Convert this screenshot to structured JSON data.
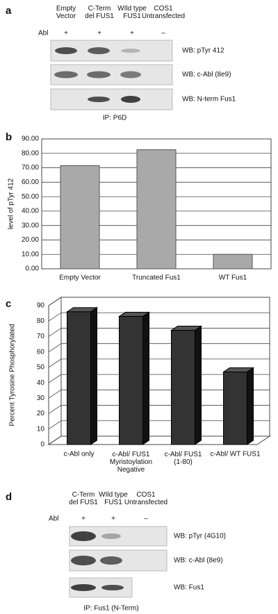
{
  "panel_a": {
    "label": "a",
    "columns": [
      "Empty\nVector",
      "C-Term\ndel FUS1",
      "WIld type\nFUS1",
      "COS1\nUntransfected"
    ],
    "row_label": "Abl",
    "signs": [
      "+",
      "+",
      "+",
      "–"
    ],
    "blots": [
      "WB: pTyr 412",
      "WB: c-Abl (8e9)",
      "WB: N-term Fus1"
    ],
    "ip": "IP: P6D"
  },
  "panel_b_label": "b",
  "panel_c_label": "c",
  "panel_d": {
    "label": "d",
    "columns": [
      "C-Term\ndel FUS1",
      "WIld type\nFUS1",
      "COS1\nUntransfected"
    ],
    "row_label": "Abl",
    "signs": [
      "+",
      "+",
      "–"
    ],
    "blots": [
      "WB: pTyr (4G10)",
      "WB: c-Abl (8e9)",
      "WB: Fus1"
    ],
    "ip": "IP: Fus1 (N-Term)"
  },
  "chart_data": [
    {
      "type": "bar",
      "y_label": "level of pTyr 412",
      "categories": [
        "Empty Vector",
        "Truncated Fus1",
        "WT Fus1"
      ],
      "values": [
        71.5,
        82.5,
        10
      ],
      "color": "#a9a9a9",
      "ylim": [
        0,
        90
      ],
      "yticks": [
        {
          "value": 0,
          "label": "0.00"
        },
        {
          "value": 10,
          "label": "10.00"
        },
        {
          "value": 20,
          "label": "20.00"
        },
        {
          "value": 30,
          "label": "30.00"
        },
        {
          "value": 40,
          "label": "40.00"
        },
        {
          "value": 50,
          "label": "50.00"
        },
        {
          "value": 60,
          "label": "60.00"
        },
        {
          "value": 70,
          "label": "70.00"
        },
        {
          "value": 80,
          "label": "80.00"
        },
        {
          "value": 90,
          "label": "90.00"
        }
      ],
      "grid": true
    },
    {
      "type": "bar3d",
      "y_label": "Percent Tyrosine Phosphorylated",
      "categories": [
        "c-Abl only",
        "c-Abl/ FUS1\nMyristoylation\nNegative",
        "c-Abl/ FUS1\n(1-80)",
        "c-Abl/ WT FUS1"
      ],
      "values": [
        86,
        83,
        74,
        47
      ],
      "color": "#333333",
      "ylim": [
        0,
        90
      ],
      "yticks": [
        0,
        10,
        20,
        30,
        40,
        50,
        60,
        70,
        80,
        90
      ],
      "grid": true
    }
  ]
}
